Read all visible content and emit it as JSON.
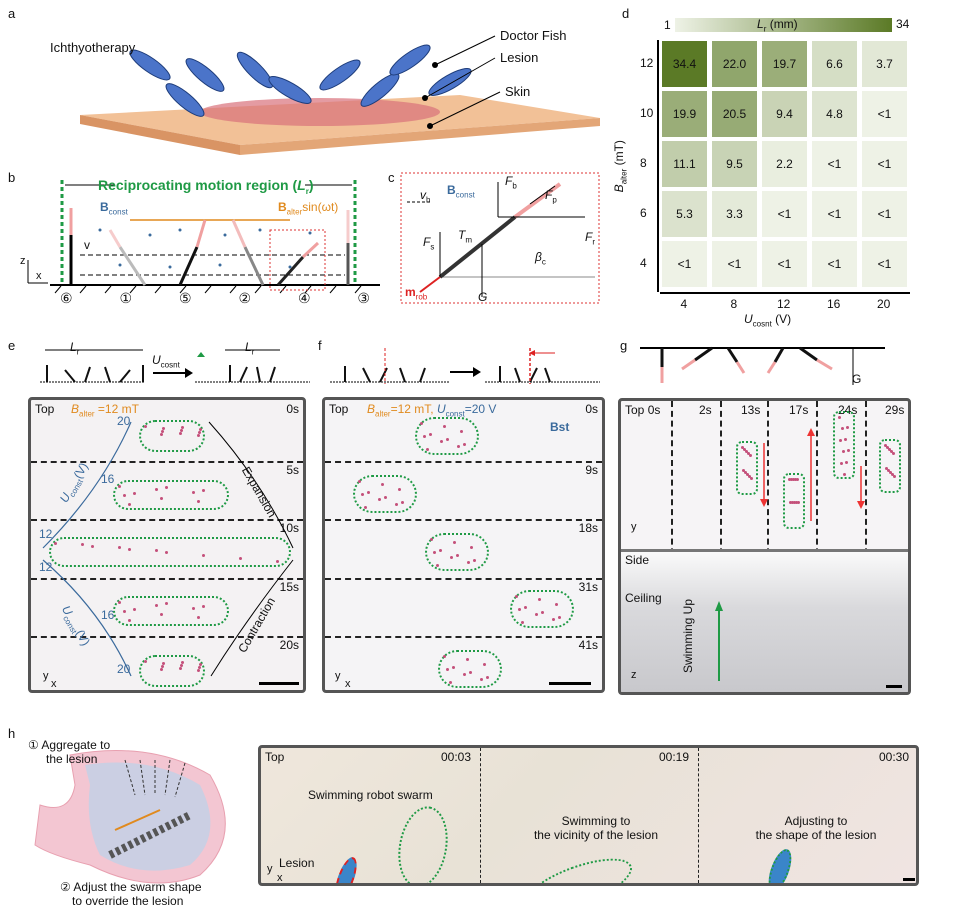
{
  "panel_labels": {
    "a": "a",
    "b": "b",
    "c": "c",
    "d": "d",
    "e": "e",
    "f": "f",
    "g": "g",
    "h": "h"
  },
  "panel_a": {
    "title": "Ichthyotherapy",
    "callouts": [
      "Doctor Fish",
      "Lesion",
      "Skin"
    ]
  },
  "panel_b": {
    "region_title": "Reciprocating motion region (",
    "region_symbol": "L",
    "region_sub": "r",
    "region_close": ")",
    "b_const": "B",
    "b_const_sub": "const",
    "b_alter": "B",
    "b_alter_sub": "alter",
    "b_alter_tail": "sin(ωt)",
    "velocity": "v",
    "axis_z": "z",
    "axis_x": "x",
    "positions": [
      "⑥",
      "①",
      "⑤",
      "②",
      "④",
      "③"
    ],
    "colors": {
      "green": "#1f9a45",
      "orange": "#e08a1e",
      "blue": "#3a6a9c",
      "pink": "#f0a0a0"
    }
  },
  "panel_c": {
    "b_const": "B",
    "b_const_sub": "const",
    "v_h": "v",
    "v_h_sub": "h",
    "F_b": "F",
    "F_b_sub": "b",
    "F_p": "F",
    "F_p_sub": "p",
    "F_s": "F",
    "F_s_sub": "s",
    "F_r": "F",
    "F_r_sub": "r",
    "T_m": "T",
    "T_m_sub": "m",
    "beta": "β",
    "beta_sub": "c",
    "G": "G",
    "m_rob": "m",
    "m_rob_sub": "rob"
  },
  "chart_data": {
    "type": "heatmap",
    "colorbar": {
      "label": "L",
      "label_sub": "r",
      "label_unit": " (mm)",
      "min": 1,
      "max": 34,
      "min_label": "1",
      "max_label": "34",
      "color_low": "#eef2e6",
      "color_high": "#5b7a26"
    },
    "xlabel": "U",
    "xlabel_sub": "cosnt",
    "xlabel_unit": " (V)",
    "ylabel": "B",
    "ylabel_sub": "alter",
    "ylabel_unit": " (mT)",
    "x": [
      "4",
      "8",
      "12",
      "16",
      "20"
    ],
    "y": [
      "12",
      "10",
      "8",
      "6",
      "4"
    ],
    "values": [
      [
        "34.4",
        "22.0",
        "19.7",
        "6.6",
        "3.7"
      ],
      [
        "19.9",
        "20.5",
        "9.4",
        "4.8",
        "<1"
      ],
      [
        "11.1",
        "9.5",
        "2.2",
        "<1",
        "<1"
      ],
      [
        "5.3",
        "3.3",
        "<1",
        "<1",
        "<1"
      ],
      [
        "<1",
        "<1",
        "<1",
        "<1",
        "<1"
      ]
    ]
  },
  "panel_e": {
    "Lr": "L",
    "Lr_sub": "r",
    "U": "U",
    "U_sub": "cosnt",
    "view": "Top",
    "b_alter": "B",
    "b_alter_sub": "alter",
    "b_alter_val": " =12 mT",
    "times": [
      "0s",
      "5s",
      "10s",
      "15s",
      "20s"
    ],
    "expansion": "Expansion",
    "contraction": "Contraction",
    "voltage_ticks_top": [
      "20",
      "16",
      "12"
    ],
    "voltage_ticks_bottom": [
      "12",
      "16",
      "20"
    ],
    "u_label": "U",
    "u_label_sub": "const",
    "u_label_unit": "(V)",
    "axis_y": "y",
    "axis_x": "x",
    "axis_z": "z"
  },
  "panel_f": {
    "view": "Top",
    "b_alter": "B",
    "b_alter_sub": "alter",
    "b_alter_val": "=12 mT, ",
    "u": "U",
    "u_sub": "const",
    "u_val": "=20 V",
    "bst": "Bst",
    "times": [
      "0s",
      "9s",
      "18s",
      "31s",
      "41s"
    ],
    "axis_y": "y",
    "axis_x": "x",
    "axis_z": "z"
  },
  "panel_g": {
    "view_top": "Top",
    "times": [
      "0s",
      "2s",
      "13s",
      "17s",
      "24s",
      "29s"
    ],
    "view_side": "Side",
    "ceiling": "Ceiling",
    "swimming_up": "Swimming Up",
    "G": "G",
    "axis_z": "z",
    "axis_y": "y",
    "axis_x": "x"
  },
  "panel_h": {
    "step1": "① Aggregate to",
    "step1b": "the lesion",
    "step2": "② Adjust the swarm shape",
    "step2b": "to override the lesion",
    "view": "Top",
    "times": [
      "00:03",
      "00:19",
      "00:30"
    ],
    "swarm_label": "Swimming robot swarm",
    "lesion_label": "Lesion",
    "frame2_label": "Swimming to",
    "frame2_label_b": "the vicinity of the lesion",
    "frame3_label": "Adjusting to",
    "frame3_label_b": "the shape of the lesion",
    "axis_y": "y",
    "axis_x": "x"
  }
}
